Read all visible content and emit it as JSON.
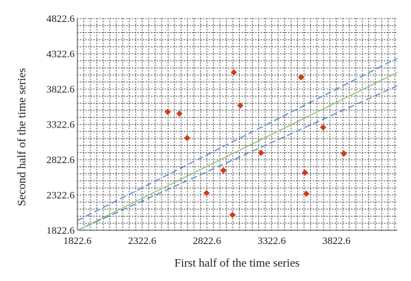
{
  "colors": {
    "points": "#d13b1a",
    "fit_line": "#93c47d",
    "bounds": "#4f86c6",
    "grid": "#333333",
    "axis": "#333333"
  },
  "chart_data": {
    "type": "scatter",
    "xlabel": "First half of the time series",
    "ylabel": "Second half of the time series",
    "xlim": [
      1822.6,
      4292.6
    ],
    "ylim": [
      1822.6,
      4822.6
    ],
    "x_ticks": [
      1822.6,
      2322.6,
      2822.6,
      3322.6,
      3822.6
    ],
    "x_tick_labels": [
      "1822.6",
      "2322.6",
      "2822.6",
      "3322.6",
      "3822.6"
    ],
    "y_ticks": [
      1822.6,
      2322.6,
      2822.6,
      3322.6,
      3822.6,
      4322.6,
      4822.6
    ],
    "y_tick_labels": [
      "1822.6",
      "2322.6",
      "2822.6",
      "3322.6",
      "3822.6",
      "4322.6",
      "4822.6"
    ],
    "grid": "dotted, vertical every 50 and horizontal every 100 data units",
    "points": [
      {
        "x": 2520,
        "y": 3500
      },
      {
        "x": 2610,
        "y": 3475
      },
      {
        "x": 2670,
        "y": 3130
      },
      {
        "x": 2820,
        "y": 2350
      },
      {
        "x": 2950,
        "y": 2670
      },
      {
        "x": 3020,
        "y": 2040
      },
      {
        "x": 3030,
        "y": 4060
      },
      {
        "x": 3080,
        "y": 3590
      },
      {
        "x": 3240,
        "y": 2920
      },
      {
        "x": 3550,
        "y": 3990
      },
      {
        "x": 3580,
        "y": 2640
      },
      {
        "x": 3590,
        "y": 2340
      },
      {
        "x": 3720,
        "y": 3280
      },
      {
        "x": 3880,
        "y": 2910
      }
    ],
    "fit_line": {
      "style": "solid",
      "points": [
        [
          1822.6,
          1822.6
        ],
        [
          4292.6,
          4060
        ]
      ]
    },
    "upper_bound": {
      "style": "dashed",
      "points": [
        [
          1822.6,
          1960
        ],
        [
          4292.6,
          4260
        ]
      ]
    },
    "lower_bound": {
      "style": "dashed",
      "points": [
        [
          1822.6,
          1822.6
        ],
        [
          4292.6,
          3870
        ]
      ]
    }
  }
}
